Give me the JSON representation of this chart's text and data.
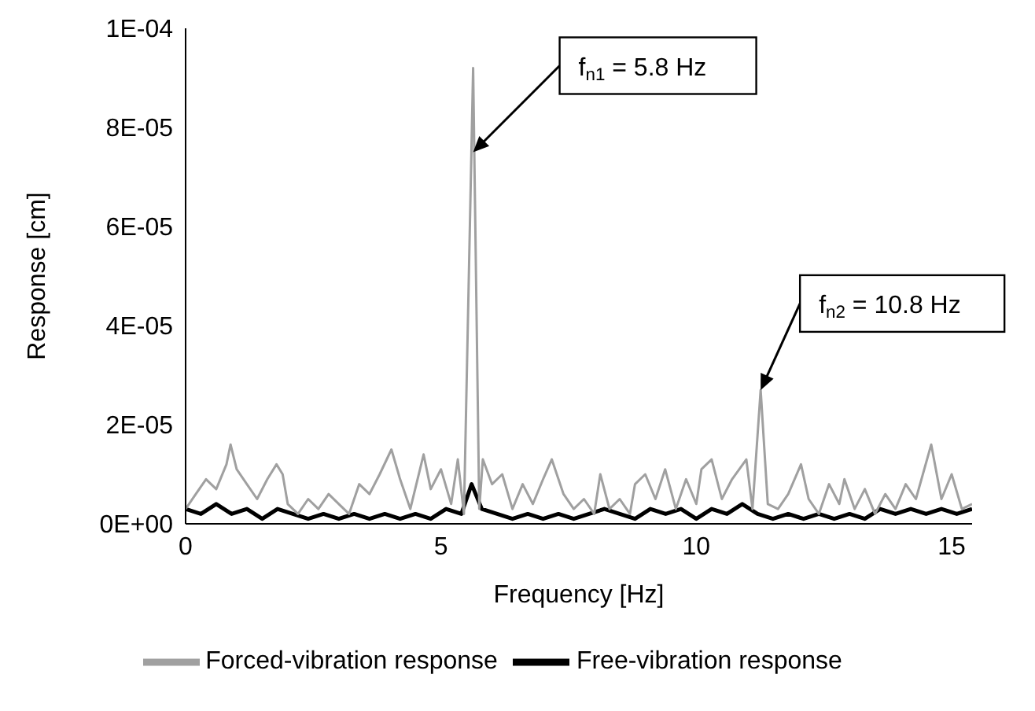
{
  "chart_data": {
    "type": "line",
    "xlabel": "Frequency [Hz]",
    "ylabel": "Response [cm]",
    "xlim": [
      0,
      15.4
    ],
    "xticks": [
      0,
      5,
      10,
      15
    ],
    "ylim": [
      0,
      0.0001
    ],
    "yticks": [
      {
        "value": 0,
        "label": "0E+00"
      },
      {
        "value": 2e-05,
        "label": "2E-05"
      },
      {
        "value": 4e-05,
        "label": "4E-05"
      },
      {
        "value": 6e-05,
        "label": "6E-05"
      },
      {
        "value": 8e-05,
        "label": "8E-05"
      },
      {
        "value": 0.0001,
        "label": "1E-04"
      }
    ],
    "legend": "bottom",
    "series": [
      {
        "name": "Free-vibration response",
        "color": "#000000",
        "x": [
          0,
          0.3,
          0.6,
          0.9,
          1.2,
          1.5,
          1.8,
          2.1,
          2.4,
          2.7,
          3.0,
          3.3,
          3.6,
          3.9,
          4.2,
          4.5,
          4.8,
          5.1,
          5.4,
          5.6,
          5.8,
          6.1,
          6.4,
          6.7,
          7.0,
          7.3,
          7.6,
          7.9,
          8.2,
          8.5,
          8.8,
          9.1,
          9.4,
          9.7,
          10.0,
          10.3,
          10.6,
          10.9,
          11.2,
          11.5,
          11.8,
          12.1,
          12.4,
          12.7,
          13.0,
          13.3,
          13.6,
          13.9,
          14.2,
          14.5,
          14.8,
          15.1,
          15.4
        ],
        "values": [
          3e-06,
          2e-06,
          4e-06,
          2e-06,
          3e-06,
          1e-06,
          3e-06,
          2e-06,
          1e-06,
          2e-06,
          1e-06,
          2e-06,
          1e-06,
          2e-06,
          1e-06,
          2e-06,
          1e-06,
          3e-06,
          2e-06,
          8e-06,
          3e-06,
          2e-06,
          1e-06,
          2e-06,
          1e-06,
          2e-06,
          1e-06,
          2e-06,
          3e-06,
          2e-06,
          1e-06,
          3e-06,
          2e-06,
          3e-06,
          1e-06,
          3e-06,
          2e-06,
          4e-06,
          2e-06,
          1e-06,
          2e-06,
          1e-06,
          2e-06,
          1e-06,
          2e-06,
          1e-06,
          3e-06,
          2e-06,
          3e-06,
          2e-06,
          3e-06,
          2e-06,
          3e-06
        ]
      },
      {
        "name": "Forced-vibration response",
        "color": "#a0a0a0",
        "x": [
          0,
          0.2,
          0.4,
          0.6,
          0.8,
          0.88,
          1.0,
          1.2,
          1.4,
          1.6,
          1.78,
          1.9,
          2.0,
          2.2,
          2.4,
          2.6,
          2.8,
          3.0,
          3.2,
          3.4,
          3.6,
          3.8,
          4.03,
          4.2,
          4.4,
          4.66,
          4.8,
          5.0,
          5.2,
          5.33,
          5.45,
          5.63,
          5.75,
          5.82,
          6.0,
          6.2,
          6.4,
          6.6,
          6.8,
          7.0,
          7.17,
          7.4,
          7.6,
          7.8,
          8.0,
          8.12,
          8.3,
          8.5,
          8.7,
          8.8,
          9.0,
          9.2,
          9.39,
          9.6,
          9.8,
          10.0,
          10.1,
          10.3,
          10.5,
          10.7,
          10.98,
          11.1,
          11.26,
          11.4,
          11.6,
          11.8,
          12.05,
          12.2,
          12.4,
          12.6,
          12.8,
          12.9,
          13.1,
          13.3,
          13.5,
          13.7,
          13.9,
          14.1,
          14.3,
          14.6,
          14.8,
          15.0,
          15.2,
          15.4
        ],
        "values": [
          3e-06,
          6e-06,
          9e-06,
          7e-06,
          1.2e-05,
          1.6e-05,
          1.1e-05,
          8e-06,
          5e-06,
          9e-06,
          1.2e-05,
          1e-05,
          4e-06,
          2e-06,
          5e-06,
          3e-06,
          6e-06,
          4e-06,
          2e-06,
          8e-06,
          6e-06,
          1e-05,
          1.5e-05,
          9e-06,
          3e-06,
          1.4e-05,
          7e-06,
          1.1e-05,
          4e-06,
          1.3e-05,
          2e-06,
          9.2e-05,
          3e-06,
          1.3e-05,
          8e-06,
          1e-05,
          3e-06,
          8e-06,
          4e-06,
          9e-06,
          1.3e-05,
          6e-06,
          3e-06,
          5e-06,
          2e-06,
          1e-05,
          3e-06,
          5e-06,
          2e-06,
          8e-06,
          1e-05,
          5e-06,
          1.1e-05,
          3e-06,
          9e-06,
          4e-06,
          1.1e-05,
          1.3e-05,
          5e-06,
          9e-06,
          1.3e-05,
          3e-06,
          2.7e-05,
          4e-06,
          3e-06,
          6e-06,
          1.2e-05,
          5e-06,
          2e-06,
          8e-06,
          4e-06,
          9e-06,
          3e-06,
          7e-06,
          2e-06,
          6e-06,
          3e-06,
          8e-06,
          5e-06,
          1.6e-05,
          5e-06,
          1e-05,
          3e-06,
          4e-06
        ]
      }
    ],
    "annotations": [
      {
        "text": "f$_{n1}$ = 5.8 Hz",
        "x": 5.63,
        "y": 7.5e-05
      },
      {
        "text": "f$_{n2}$ = 10.8 Hz",
        "x": 11.26,
        "y": 2.7e-05
      }
    ]
  }
}
